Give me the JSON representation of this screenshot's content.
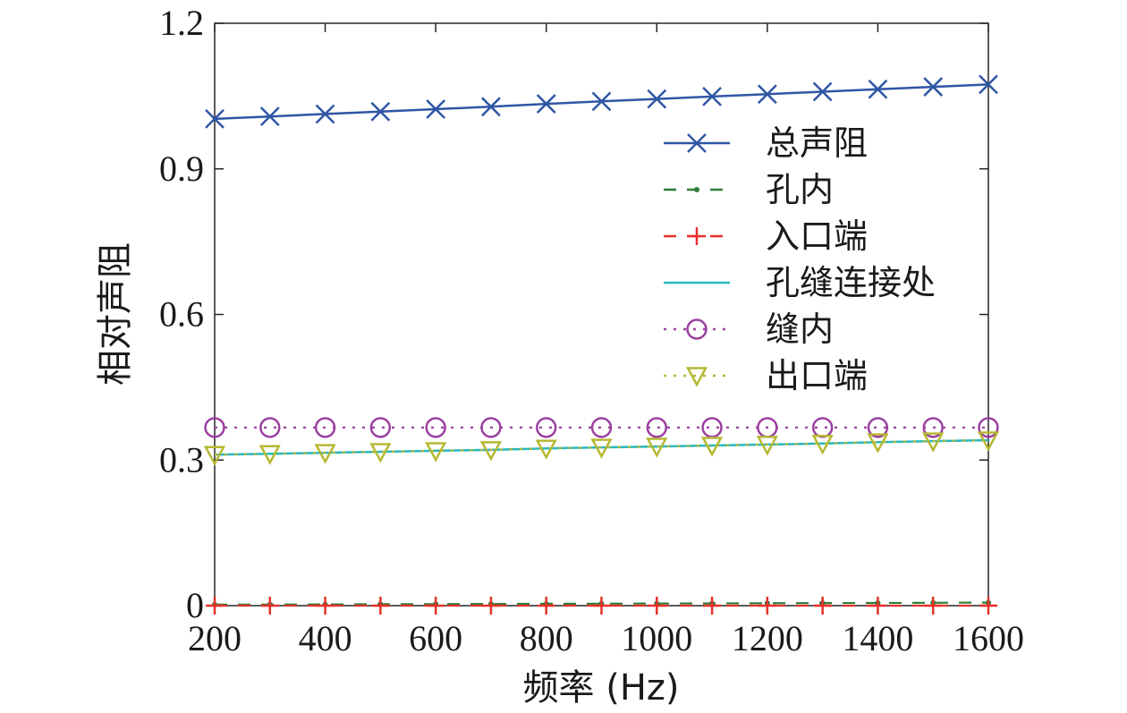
{
  "chart_data": {
    "type": "line",
    "title": "",
    "xlabel": "频率 (Hz)",
    "ylabel": "相对声阻",
    "xlim": [
      200,
      1600
    ],
    "ylim": [
      0,
      1.2
    ],
    "xticks": [
      200,
      400,
      600,
      800,
      1000,
      1200,
      1400,
      1600
    ],
    "yticks": [
      0,
      0.3,
      0.6,
      0.9,
      1.2
    ],
    "ytick_labels": [
      "0",
      "0.3",
      "0.6",
      "0.9",
      "1.2"
    ],
    "grid": false,
    "legend_position": "top-right",
    "x": [
      200,
      300,
      400,
      500,
      600,
      700,
      800,
      900,
      1000,
      1100,
      1200,
      1300,
      1400,
      1500,
      1600
    ],
    "series": [
      {
        "name": "总声阻",
        "color": "#2f56a5",
        "line_style": "solid",
        "marker": "x",
        "values": [
          1.003,
          1.008,
          1.013,
          1.018,
          1.023,
          1.028,
          1.034,
          1.039,
          1.044,
          1.049,
          1.054,
          1.059,
          1.064,
          1.069,
          1.074
        ]
      },
      {
        "name": "孔内",
        "color": "#2e7d3a",
        "line_style": "dashed",
        "marker": "point",
        "values": [
          0.002,
          0.0023,
          0.0026,
          0.0029,
          0.0032,
          0.0035,
          0.0038,
          0.0041,
          0.0044,
          0.0047,
          0.005,
          0.0053,
          0.0056,
          0.0059,
          0.0062
        ]
      },
      {
        "name": "入口端",
        "color": "#e8302a",
        "line_style": "dashed",
        "marker": "plus",
        "values": [
          0.0,
          0.0,
          0.0,
          0.0,
          0.0,
          0.0,
          0.0,
          0.0,
          0.0,
          0.0,
          0.0,
          0.0,
          0.0,
          0.0,
          0.0
        ]
      },
      {
        "name": "孔缝连接处",
        "color": "#2ab7bb",
        "line_style": "solid",
        "marker": "none",
        "values": [
          0.311,
          0.313,
          0.315,
          0.317,
          0.319,
          0.321,
          0.324,
          0.326,
          0.328,
          0.33,
          0.332,
          0.334,
          0.337,
          0.339,
          0.341
        ]
      },
      {
        "name": "缝内",
        "color": "#9b3fa0",
        "line_style": "dotted",
        "marker": "circle",
        "values": [
          0.367,
          0.367,
          0.367,
          0.367,
          0.367,
          0.367,
          0.367,
          0.367,
          0.367,
          0.367,
          0.367,
          0.367,
          0.367,
          0.367,
          0.367
        ]
      },
      {
        "name": "出口端",
        "color": "#b6b832",
        "line_style": "dotted",
        "marker": "triangle-down",
        "values": [
          0.311,
          0.313,
          0.315,
          0.317,
          0.319,
          0.321,
          0.324,
          0.326,
          0.328,
          0.33,
          0.332,
          0.334,
          0.337,
          0.339,
          0.341
        ]
      }
    ]
  }
}
